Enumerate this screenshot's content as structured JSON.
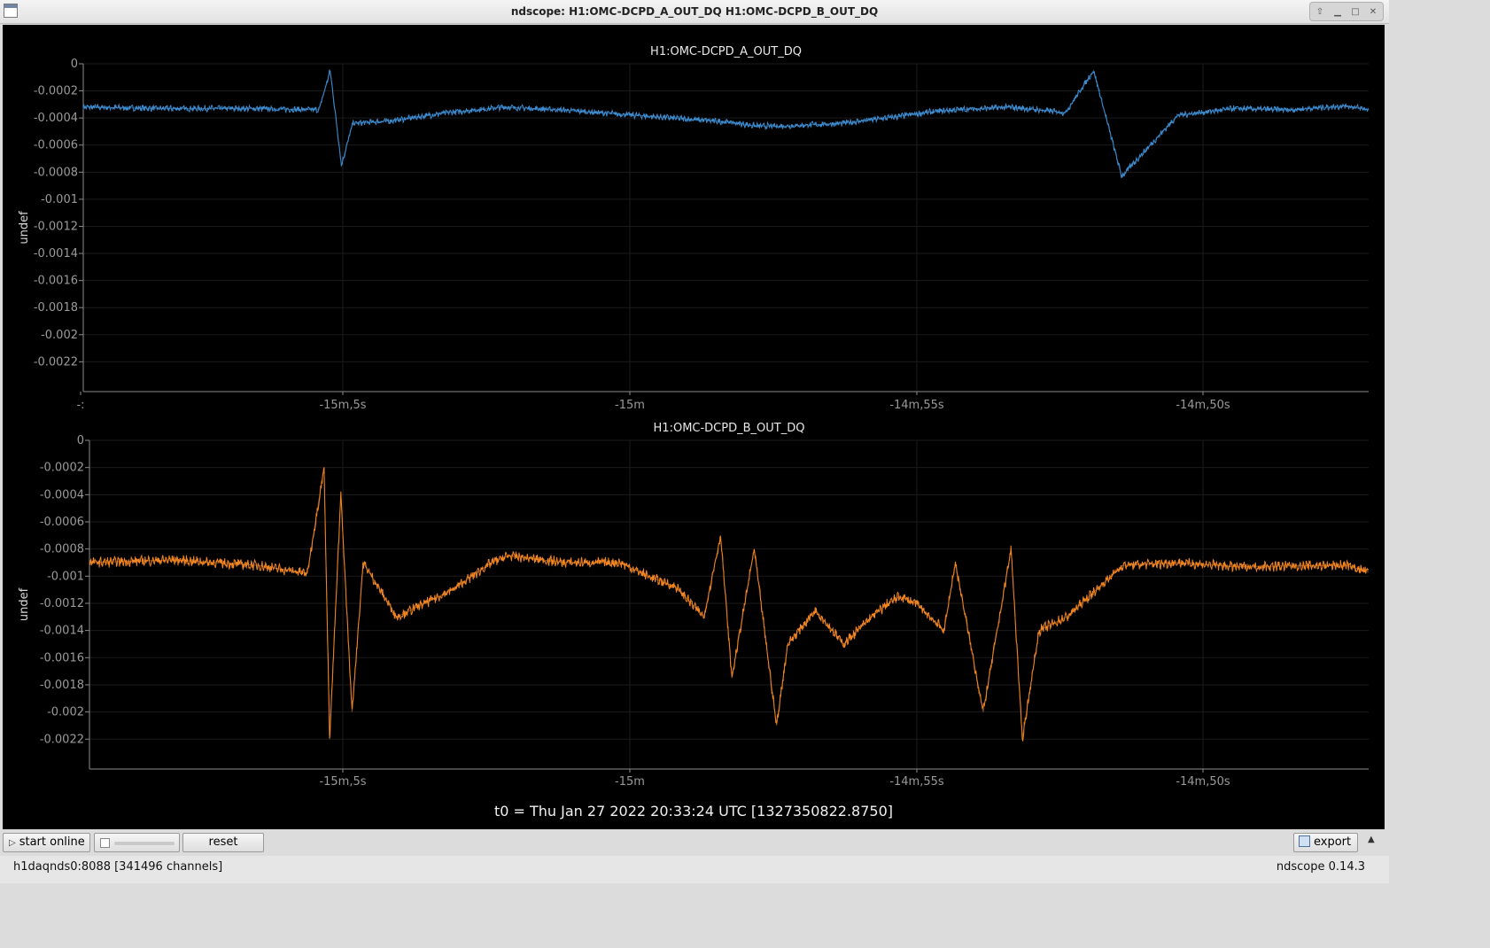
{
  "window": {
    "title": "ndscope: H1:OMC-DCPD_A_OUT_DQ H1:OMC-DCPD_B_OUT_DQ",
    "controls": [
      "up-arrow-icon",
      "minimize-icon",
      "maximize-icon",
      "close-icon"
    ]
  },
  "plots": [
    {
      "title": "H1:OMC-DCPD_A_OUT_DQ",
      "ylabel": "undef",
      "y_ticks": [
        "0",
        "-0.0002",
        "-0.0004",
        "-0.0006",
        "-0.0008",
        "-0.001",
        "-0.0012",
        "-0.0014",
        "-0.0016",
        "-0.0018",
        "-0.002",
        "-0.0022"
      ],
      "x_ticks": [
        "-:",
        "-15m,5s",
        "-15m",
        "-14m,55s",
        "-14m,50s"
      ]
    },
    {
      "title": "H1:OMC-DCPD_B_OUT_DQ",
      "ylabel": "undef",
      "y_ticks": [
        "0",
        "-0.0002",
        "-0.0004",
        "-0.0006",
        "-0.0008",
        "-0.001",
        "-0.0012",
        "-0.0014",
        "-0.0016",
        "-0.0018",
        "-0.002",
        "-0.0022"
      ],
      "x_ticks": [
        "-15m,5s",
        "-15m",
        "-14m,55s",
        "-14m,50s"
      ]
    }
  ],
  "t0_label": "t0 = Thu Jan 27 2022 20:33:24 UTC [1327350822.8750]",
  "chart_data": [
    {
      "type": "line",
      "title": "H1:OMC-DCPD_A_OUT_DQ",
      "ylabel": "undef",
      "ylim": [
        -0.00242,
        0
      ],
      "xlim": [
        -309.5,
        -286.6
      ],
      "grid": true,
      "color": "#3d8ccf",
      "series": [
        {
          "x": [
            -309.5,
            -308,
            -306.5,
            -305.3,
            -305.1,
            -304.9,
            -304.7,
            -304,
            -303,
            -302,
            -301,
            -300,
            -299,
            -298,
            -297.5,
            -297,
            -296,
            -295,
            -294.5,
            -294,
            -293,
            -292,
            -291.5,
            -291,
            -290,
            -289,
            -288,
            -287,
            -286.6
          ],
          "y": [
            -0.00032,
            -0.00033,
            -0.00033,
            -0.00034,
            -5e-05,
            -0.00075,
            -0.00044,
            -0.00042,
            -0.00036,
            -0.00032,
            -0.00034,
            -0.00037,
            -0.0004,
            -0.00043,
            -0.00046,
            -0.00046,
            -0.00044,
            -0.00039,
            -0.00036,
            -0.00034,
            -0.00032,
            -0.00036,
            -5e-05,
            -0.00083,
            -0.00038,
            -0.00033,
            -0.00034,
            -0.00031,
            -0.00034
          ]
        }
      ]
    },
    {
      "type": "line",
      "title": "H1:OMC-DCPD_B_OUT_DQ",
      "ylabel": "undef",
      "ylim": [
        -0.00242,
        0
      ],
      "xlim": [
        -309.5,
        -286.6
      ],
      "grid": true,
      "color": "#f08522",
      "series": [
        {
          "x": [
            -309.5,
            -308,
            -306.5,
            -305.6,
            -305.3,
            -305.2,
            -305.0,
            -304.8,
            -304.6,
            -304,
            -303,
            -302.3,
            -302,
            -301,
            -300,
            -299.5,
            -299,
            -298.5,
            -298.2,
            -298,
            -297.6,
            -297.2,
            -297,
            -296.5,
            -296,
            -295.5,
            -295.2,
            -295,
            -294.7,
            -294.2,
            -294,
            -293.5,
            -293,
            -292.8,
            -292.5,
            -292,
            -291,
            -290,
            -289,
            -287,
            -286.6
          ],
          "y": [
            -0.0009,
            -0.00088,
            -0.00092,
            -0.00098,
            -0.0002,
            -0.0022,
            -0.0004,
            -0.002,
            -0.0009,
            -0.0013,
            -0.0011,
            -0.0009,
            -0.00085,
            -0.0009,
            -0.0009,
            -0.001,
            -0.00108,
            -0.0013,
            -0.0007,
            -0.00175,
            -0.0008,
            -0.0021,
            -0.0015,
            -0.00125,
            -0.0015,
            -0.0013,
            -0.0012,
            -0.00115,
            -0.0012,
            -0.0014,
            -0.0009,
            -0.002,
            -0.0008,
            -0.0022,
            -0.0014,
            -0.0013,
            -0.00092,
            -0.0009,
            -0.00093,
            -0.00092,
            -0.00097
          ]
        }
      ]
    }
  ],
  "toolbar": {
    "start_online_label": "start online",
    "reset_label": "reset",
    "export_label": "export"
  },
  "status": {
    "server": "h1daqnds0:8088  [341496 channels]",
    "version": "ndscope 0.14.3"
  }
}
